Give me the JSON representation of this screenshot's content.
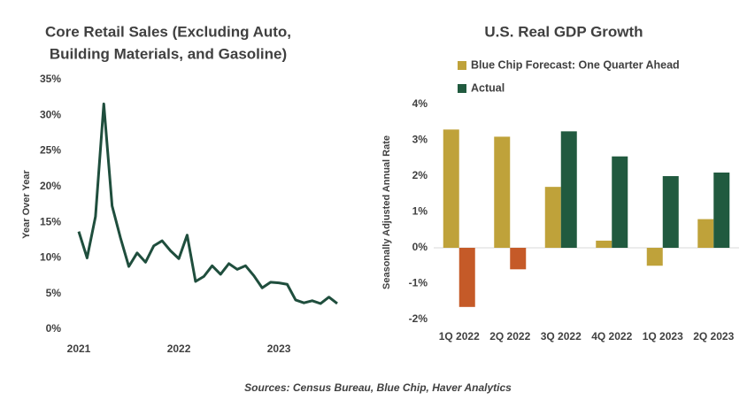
{
  "chart_data": [
    {
      "type": "line",
      "title_lines": [
        "Core Retail Sales (Excluding Auto,",
        "Building Materials, and Gasoline)"
      ],
      "y_label": "Year Over Year",
      "x": [
        2021,
        2021.083,
        2021.167,
        2021.25,
        2021.333,
        2021.417,
        2021.5,
        2021.583,
        2021.667,
        2021.75,
        2021.833,
        2021.917,
        2022,
        2022.083,
        2022.167,
        2022.25,
        2022.333,
        2022.417,
        2022.5,
        2022.583,
        2022.667,
        2022.75,
        2022.833,
        2022.917,
        2023,
        2023.083,
        2023.167,
        2023.25,
        2023.333,
        2023.417,
        2023.5,
        2023.583
      ],
      "series": [
        {
          "color": "#1f4e3d",
          "values": [
            13.7,
            10.0,
            15.8,
            31.6,
            17.3,
            12.8,
            8.8,
            10.7,
            9.4,
            11.7,
            12.4,
            11.0,
            9.9,
            13.2,
            6.7,
            7.4,
            8.9,
            7.7,
            9.2,
            8.4,
            8.9,
            7.5,
            5.8,
            6.6,
            6.5,
            6.3,
            4.1,
            3.7,
            4.0,
            3.6,
            4.5,
            3.6
          ]
        }
      ],
      "xlim": [
        2021,
        2023.583
      ],
      "xticks": [
        2021,
        2022,
        2023
      ],
      "ylim": [
        0,
        35
      ],
      "yticks": [
        {
          "value": 0,
          "label": "0%"
        },
        {
          "value": 5,
          "label": "5%"
        },
        {
          "value": 10,
          "label": "10%"
        },
        {
          "value": 15,
          "label": "15%"
        },
        {
          "value": 20,
          "label": "20%"
        },
        {
          "value": 25,
          "label": "25%"
        },
        {
          "value": 30,
          "label": "30%"
        },
        {
          "value": 35,
          "label": "35%"
        }
      ]
    },
    {
      "type": "bar",
      "title": "U.S. Real GDP Growth",
      "y_label": "Seasonally Adjusted Annual Rate",
      "categories": [
        "1Q 2022",
        "2Q 2022",
        "3Q 2022",
        "4Q 2022",
        "1Q 2023",
        "2Q 2023"
      ],
      "series": [
        {
          "name": "Blue Chip Forecast: One Quarter Ahead",
          "color": "#bfa23a",
          "values": [
            3.3,
            3.1,
            1.7,
            0.2,
            -0.5,
            0.8
          ]
        },
        {
          "name": "Actual",
          "color": "#215a3f",
          "negative_color": "#c55a28",
          "values": [
            -1.65,
            -0.6,
            3.25,
            2.55,
            2.0,
            2.1
          ]
        }
      ],
      "ylim": [
        -2,
        4
      ],
      "yticks": [
        {
          "value": -2,
          "label": "-2%"
        },
        {
          "value": -1,
          "label": "-1%"
        },
        {
          "value": 0,
          "label": "0%"
        },
        {
          "value": 1,
          "label": "1%"
        },
        {
          "value": 2,
          "label": "2%"
        },
        {
          "value": 3,
          "label": "3%"
        },
        {
          "value": 4,
          "label": "4%"
        }
      ]
    }
  ],
  "source": "Sources: Census Bureau, Blue Chip, Haver Analytics"
}
